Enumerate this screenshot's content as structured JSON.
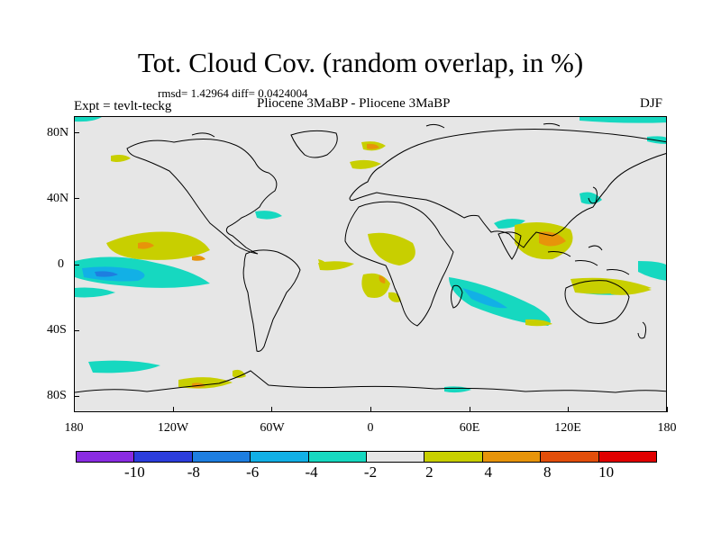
{
  "title": "Tot. Cloud Cov. (random overlap, in %)",
  "stats": "rmsd= 1.42964 diff= 0.0424004",
  "experiment": "Expt = tevlt-teckg",
  "comparison": "Pliocene   3MaBP - Pliocene   3MaBP",
  "season": "DJF",
  "lat_labels": [
    "80N",
    "40N",
    "0",
    "40S",
    "80S"
  ],
  "lon_labels": [
    "180",
    "120W",
    "60W",
    "0",
    "60E",
    "120E",
    "180"
  ],
  "colorbar": {
    "colors": [
      "#8a2be2",
      "#2b3ddc",
      "#1e7ee0",
      "#12b0e6",
      "#16d8c0",
      "#e6e6e6",
      "#c8cf00",
      "#e7940a",
      "#e24e0a",
      "#e00000"
    ],
    "labels": [
      "-10",
      "-8",
      "-6",
      "-4",
      "-2",
      "2",
      "4",
      "8",
      "10"
    ]
  },
  "map_extent": {
    "lon": [
      -180,
      180
    ],
    "lat": [
      -90,
      90
    ]
  },
  "map_colors": {
    "background": "#e6e6e6",
    "coast": "#000000",
    "neg2": "#16d8c0",
    "neg4": "#12b0e6",
    "neg6": "#1e7ee0",
    "pos2": "#c8cf00",
    "pos4": "#e7940a",
    "pos8": "#e24e0a"
  }
}
